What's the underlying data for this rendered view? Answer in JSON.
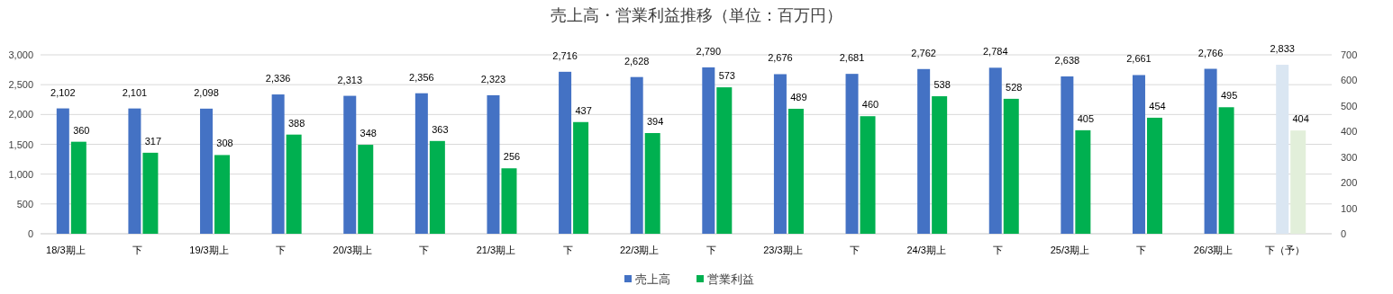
{
  "chart_data": {
    "type": "bar",
    "title": "売上高・営業利益推移（単位：百万円）",
    "categories": [
      "18/3期上",
      "下",
      "19/3期上",
      "下",
      "20/3期上",
      "下",
      "21/3期上",
      "下",
      "22/3期上",
      "下",
      "23/3期上",
      "下",
      "24/3期上",
      "下",
      "25/3期上",
      "下",
      "26/3期上",
      "下（予）"
    ],
    "series": [
      {
        "name": "売上高",
        "color": "#4472c4",
        "colors": [
          "#4472c4",
          "#4472c4",
          "#4472c4",
          "#4472c4",
          "#4472c4",
          "#4472c4",
          "#4472c4",
          "#4472c4",
          "#4472c4",
          "#4472c4",
          "#4472c4",
          "#4472c4",
          "#4472c4",
          "#4472c4",
          "#4472c4",
          "#4472c4",
          "#4472c4",
          "#dae6f2"
        ],
        "values": [
          2102,
          2101,
          2098,
          2336,
          2313,
          2356,
          2323,
          2716,
          2628,
          2790,
          2676,
          2681,
          2762,
          2784,
          2638,
          2661,
          2766,
          2833
        ],
        "value_labels": [
          "2,102",
          "2,101",
          "2,098",
          "2,336",
          "2,313",
          "2,356",
          "2,323",
          "2,716",
          "2,628",
          "2,790",
          "2,676",
          "2,681",
          "2,762",
          "2,784",
          "2,638",
          "2,661",
          "2,766",
          "2,833"
        ]
      },
      {
        "name": "営業利益",
        "color": "#00b050",
        "colors": [
          "#00b050",
          "#00b050",
          "#00b050",
          "#00b050",
          "#00b050",
          "#00b050",
          "#00b050",
          "#00b050",
          "#00b050",
          "#00b050",
          "#00b050",
          "#00b050",
          "#00b050",
          "#00b050",
          "#00b050",
          "#00b050",
          "#00b050",
          "#e2efda"
        ],
        "axis": "y2",
        "values": [
          360,
          317,
          308,
          388,
          348,
          363,
          256,
          437,
          394,
          573,
          489,
          460,
          538,
          528,
          405,
          454,
          495,
          404
        ]
      }
    ],
    "ylim": [
      0,
      3000
    ],
    "yticks": [
      {
        "value": 0,
        "label": "0"
      },
      {
        "value": 500,
        "label": "500"
      },
      {
        "value": 1000,
        "label": "1,000"
      },
      {
        "value": 1500,
        "label": "1,500"
      },
      {
        "value": 2000,
        "label": "2,000"
      },
      {
        "value": 2500,
        "label": "2,500"
      },
      {
        "value": 3000,
        "label": "3,000"
      }
    ],
    "y2lim": [
      0,
      700
    ],
    "y2ticks": [
      0,
      100,
      200,
      300,
      400,
      500,
      600,
      700
    ],
    "grid": "y",
    "legend": "bottom",
    "data_labels": true
  }
}
